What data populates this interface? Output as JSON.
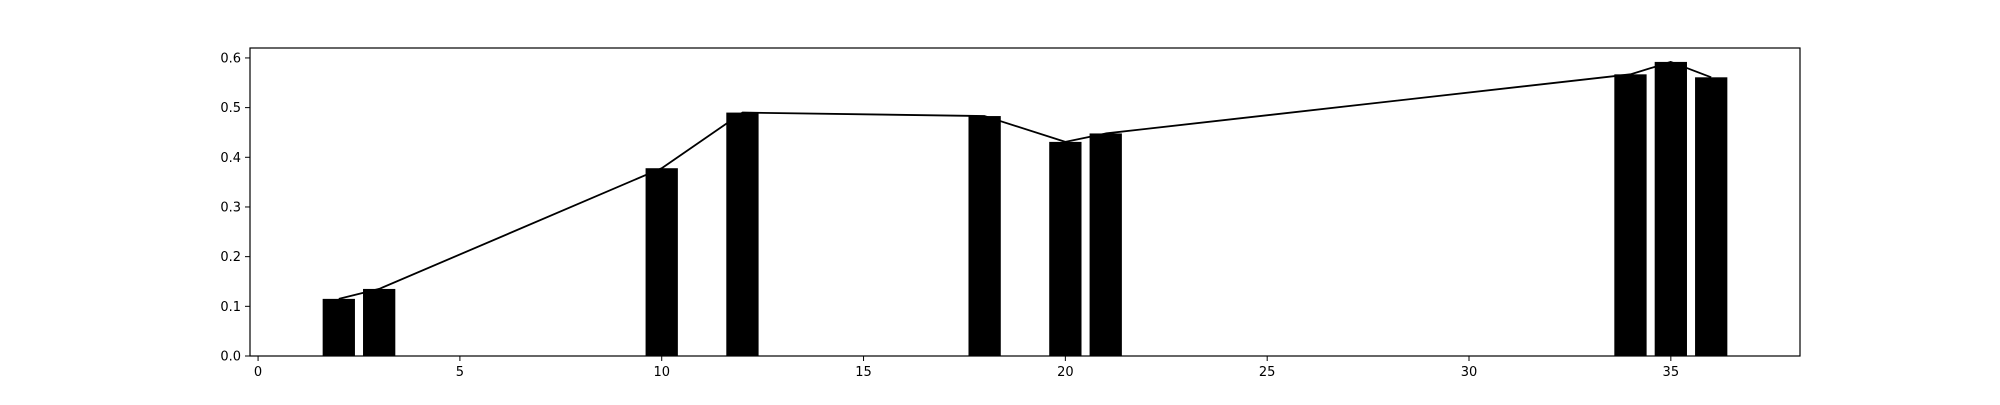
{
  "chart_data": {
    "type": "bar",
    "title": "",
    "xlabel": "",
    "ylabel": "",
    "xlim": [
      -0.2,
      38.2
    ],
    "ylim": [
      0.0,
      0.62
    ],
    "x_ticks": [
      0,
      5,
      10,
      15,
      20,
      25,
      30,
      35
    ],
    "y_ticks": [
      0.0,
      0.1,
      0.2,
      0.3,
      0.4,
      0.5,
      0.6
    ],
    "grid": false,
    "legend": "none",
    "bar_width": 0.8,
    "bar_color": "#000000",
    "line_color": "#000000",
    "x": [
      2,
      3,
      10,
      12,
      18,
      20,
      21,
      34,
      35,
      36
    ],
    "values": [
      0.115,
      0.135,
      0.378,
      0.49,
      0.483,
      0.431,
      0.448,
      0.567,
      0.592,
      0.561
    ],
    "overlay_line": {
      "x": [
        2,
        3,
        10,
        12,
        18,
        20,
        21,
        34,
        35,
        36
      ],
      "values": [
        0.115,
        0.135,
        0.378,
        0.49,
        0.483,
        0.431,
        0.448,
        0.567,
        0.592,
        0.561
      ]
    }
  }
}
